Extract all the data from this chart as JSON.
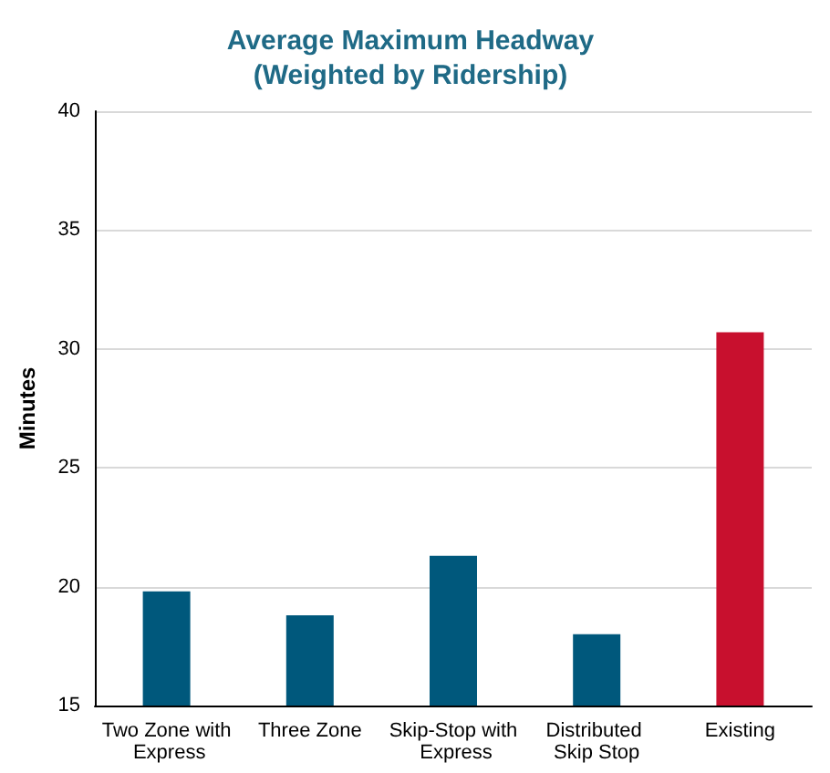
{
  "chart_data": {
    "type": "bar",
    "title": "Average Maximum Headway\n(Weighted by Ridership)",
    "ylabel": "Minutes",
    "categories": [
      "Two Zone with Express",
      "Three Zone",
      "Skip-Stop with Express",
      "Distributed Skip Stop",
      "Existing"
    ],
    "values": [
      19.8,
      18.8,
      21.3,
      18.0,
      30.7
    ],
    "colors": [
      "#00587c",
      "#00587c",
      "#00587c",
      "#00587c",
      "#c8102e"
    ],
    "ylim": [
      15,
      40
    ],
    "yticks": [
      15,
      20,
      25,
      30,
      35,
      40
    ],
    "grid": "y"
  }
}
